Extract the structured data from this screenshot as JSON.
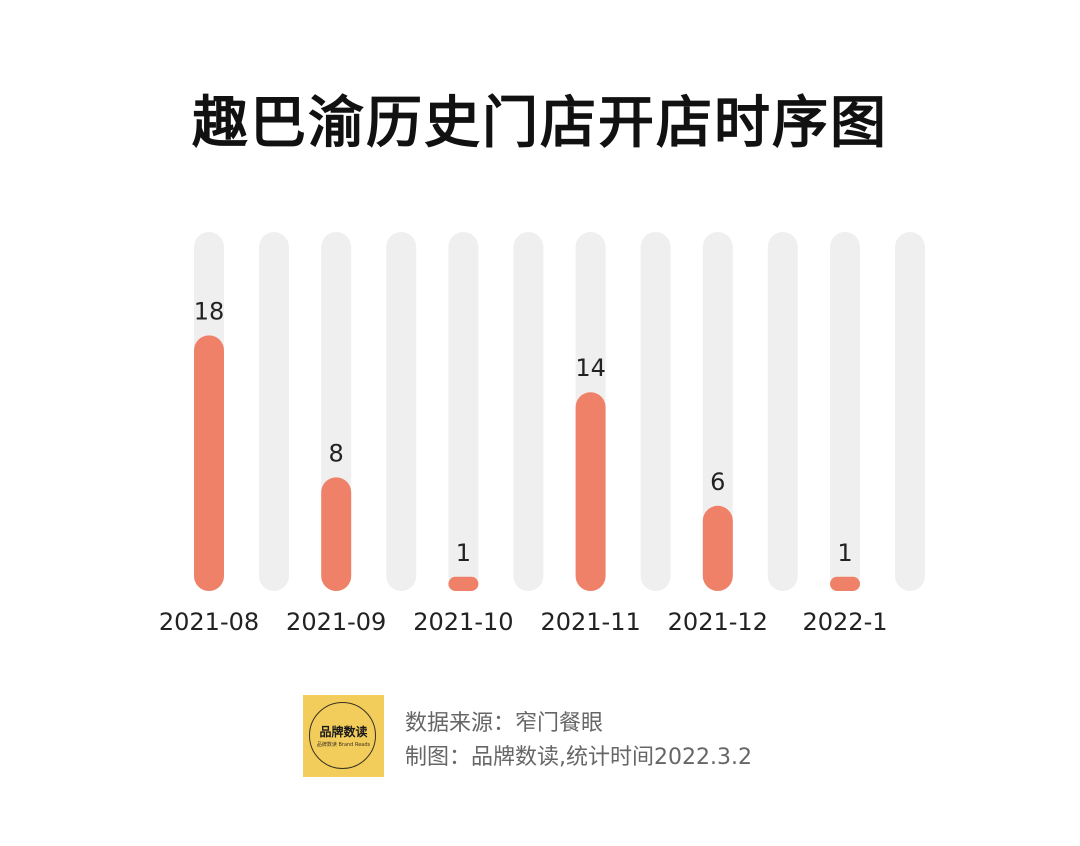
{
  "title": "趣巴渝历史门店开店时序图",
  "chart_data": {
    "type": "bar",
    "categories": [
      "2021-08",
      "2021-09",
      "2021-10",
      "2021-11",
      "2021-12",
      "2022-1"
    ],
    "values": [
      18,
      8,
      1,
      14,
      6,
      1
    ],
    "data_labels": [
      "18",
      "8",
      "1",
      "14",
      "6",
      "1"
    ],
    "ylim": [
      0,
      25
    ],
    "bar_color": "#ef8169",
    "track_color": "#efefef",
    "grid": false,
    "legend": "none",
    "xlabel": "",
    "ylabel": ""
  },
  "footer": {
    "logo_text": "品牌数读",
    "logo_subtext": "品牌数读 Brand Reads",
    "source_line": "数据来源：窄门餐眼",
    "credit_line": "制图：品牌数读,统计时间2022.3.2",
    "logo_color": "#f3cd5b"
  }
}
